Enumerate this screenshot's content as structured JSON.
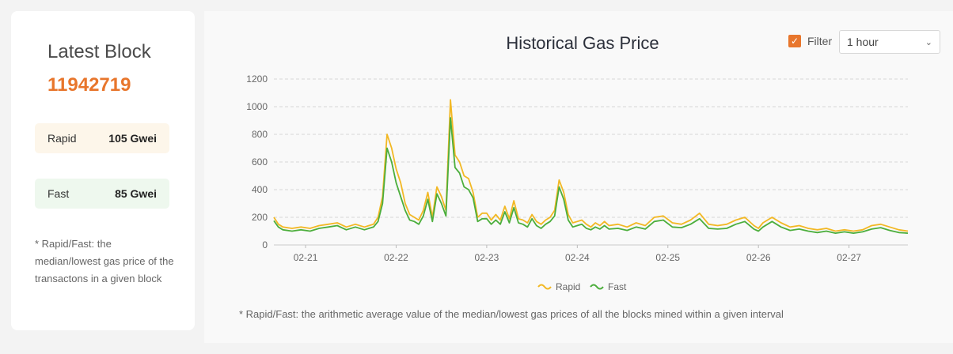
{
  "latest_block": {
    "title": "Latest Block",
    "number": "11942719",
    "rapid_label": "Rapid",
    "rapid_value": "105 Gwei",
    "fast_label": "Fast",
    "fast_value": "85 Gwei",
    "note": "* Rapid/Fast: the median/lowest gas price of the transactons in a given block"
  },
  "filter": {
    "label": "Filter",
    "checked": true,
    "selected": "1 hour",
    "checkbox_color": "#e8762c"
  },
  "footnote": "* Rapid/Fast: the arithmetic average value of the median/lowest gas prices of all the blocks mined within a given interval",
  "colors": {
    "rapid": "#f2b824",
    "fast": "#4cae3c",
    "accent": "#e8762c"
  },
  "chart_data": {
    "type": "line",
    "title": "Historical Gas Price",
    "xlabel": "",
    "ylabel": "",
    "ylim": [
      0,
      1200
    ],
    "yticks": [
      0,
      200,
      400,
      600,
      800,
      1000,
      1200
    ],
    "xlim": [
      0,
      7.0
    ],
    "xticks": [
      {
        "label": "02-21",
        "value": 0.35
      },
      {
        "label": "02-22",
        "value": 1.35
      },
      {
        "label": "02-23",
        "value": 2.35
      },
      {
        "label": "02-24",
        "value": 3.35
      },
      {
        "label": "02-25",
        "value": 4.35
      },
      {
        "label": "02-26",
        "value": 5.35
      },
      {
        "label": "02-27",
        "value": 6.35
      }
    ],
    "grid": true,
    "legend": "bottom-center",
    "x": [
      0,
      0.05,
      0.1,
      0.2,
      0.3,
      0.4,
      0.5,
      0.6,
      0.7,
      0.8,
      0.9,
      1.0,
      1.05,
      1.1,
      1.15,
      1.2,
      1.25,
      1.3,
      1.35,
      1.4,
      1.45,
      1.5,
      1.55,
      1.6,
      1.65,
      1.7,
      1.75,
      1.8,
      1.85,
      1.9,
      1.95,
      2.0,
      2.05,
      2.1,
      2.15,
      2.2,
      2.25,
      2.3,
      2.35,
      2.4,
      2.45,
      2.5,
      2.55,
      2.6,
      2.65,
      2.7,
      2.75,
      2.8,
      2.85,
      2.9,
      2.95,
      3.0,
      3.05,
      3.1,
      3.15,
      3.2,
      3.25,
      3.3,
      3.35,
      3.4,
      3.45,
      3.5,
      3.55,
      3.6,
      3.65,
      3.7,
      3.8,
      3.9,
      4.0,
      4.1,
      4.2,
      4.3,
      4.4,
      4.5,
      4.6,
      4.7,
      4.8,
      4.9,
      5.0,
      5.1,
      5.2,
      5.3,
      5.35,
      5.4,
      5.5,
      5.6,
      5.7,
      5.8,
      5.9,
      6.0,
      6.1,
      6.2,
      6.3,
      6.4,
      6.5,
      6.6,
      6.7,
      6.8,
      6.9,
      7.0
    ],
    "series": [
      {
        "name": "Rapid",
        "color": "#f2b824",
        "values": [
          200,
          150,
          130,
          120,
          130,
          120,
          140,
          150,
          160,
          130,
          150,
          130,
          140,
          150,
          200,
          350,
          800,
          700,
          550,
          450,
          300,
          220,
          200,
          180,
          250,
          380,
          200,
          420,
          350,
          250,
          1050,
          650,
          600,
          500,
          480,
          380,
          200,
          230,
          230,
          180,
          220,
          180,
          280,
          190,
          320,
          190,
          180,
          160,
          220,
          170,
          150,
          180,
          200,
          250,
          470,
          380,
          220,
          160,
          170,
          180,
          150,
          130,
          160,
          140,
          170,
          140,
          150,
          130,
          160,
          140,
          200,
          210,
          160,
          150,
          180,
          230,
          150,
          140,
          150,
          180,
          200,
          140,
          120,
          160,
          200,
          160,
          130,
          140,
          120,
          110,
          120,
          100,
          110,
          100,
          110,
          140,
          150,
          130,
          110,
          100
        ]
      },
      {
        "name": "Fast",
        "color": "#4cae3c",
        "values": [
          175,
          130,
          110,
          100,
          110,
          100,
          120,
          130,
          140,
          110,
          130,
          110,
          120,
          130,
          170,
          300,
          700,
          600,
          450,
          350,
          250,
          180,
          170,
          150,
          210,
          330,
          170,
          370,
          300,
          210,
          920,
          560,
          520,
          420,
          400,
          340,
          170,
          190,
          190,
          150,
          180,
          150,
          240,
          160,
          270,
          160,
          150,
          130,
          190,
          140,
          120,
          150,
          170,
          210,
          420,
          330,
          180,
          130,
          140,
          150,
          120,
          110,
          130,
          115,
          140,
          115,
          120,
          105,
          130,
          115,
          170,
          180,
          130,
          125,
          150,
          190,
          120,
          115,
          120,
          150,
          170,
          115,
          100,
          130,
          170,
          130,
          105,
          115,
          100,
          90,
          100,
          85,
          95,
          85,
          95,
          115,
          125,
          105,
          90,
          85
        ]
      }
    ]
  }
}
